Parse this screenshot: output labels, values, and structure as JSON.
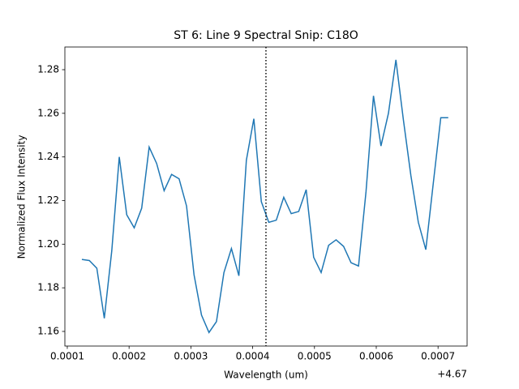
{
  "chart_data": {
    "type": "line",
    "title": "ST 6: Line 9 Spectral Snip: C18O",
    "x_label": "Wavelength (um)",
    "y_label": "Normalized Flux Intensity",
    "x_offset_label": "+4.67",
    "x": [
      4.6701236,
      4.6701357,
      4.6701478,
      4.6701599,
      4.670172,
      4.6701841,
      4.6701962,
      4.6702083,
      4.6702204,
      4.6702325,
      4.6702446,
      4.6702567,
      4.6702688,
      4.6702809,
      4.670293,
      4.6703051,
      4.6703172,
      4.6703293,
      4.6703414,
      4.6703535,
      4.6703656,
      4.6703777,
      4.6703898,
      4.6704019,
      4.670414,
      4.6704261,
      4.6704382,
      4.6704503,
      4.6704624,
      4.6704745,
      4.6704866,
      4.6704987,
      4.6705108,
      4.6705229,
      4.670535,
      4.6705471,
      4.6705592,
      4.6705713,
      4.6705834,
      4.6705955,
      4.6706076,
      4.6706197,
      4.6706318,
      4.6706439,
      4.670656,
      4.6706681,
      4.6706802,
      4.6706923,
      4.6707044,
      4.6707165
    ],
    "series": [
      {
        "color": "#1f77b4",
        "values": [
          1.193,
          1.1925,
          1.189,
          1.166,
          1.197,
          1.24,
          1.2135,
          1.2075,
          1.2165,
          1.2445,
          1.237,
          1.2245,
          1.232,
          1.23,
          1.2175,
          1.186,
          1.1675,
          1.1595,
          1.1645,
          1.187,
          1.198,
          1.1855,
          1.2385,
          1.2575,
          1.2195,
          1.21,
          1.211,
          1.2215,
          1.214,
          1.215,
          1.225,
          1.194,
          1.187,
          1.1995,
          1.202,
          1.199,
          1.1915,
          1.19,
          1.224,
          1.268,
          1.245,
          1.26,
          1.2845,
          1.257,
          1.2315,
          1.21,
          1.1975,
          1.228,
          1.258,
          1.258
        ]
      }
    ],
    "vline": 4.6704215,
    "xlim": [
      4.6700961,
      4.670747
    ],
    "ylim": [
      1.1533,
      1.2904
    ],
    "xticks": [
      {
        "value": 4.6701,
        "label": "0.0001"
      },
      {
        "value": 4.6702,
        "label": "0.0002"
      },
      {
        "value": 4.6703,
        "label": "0.0003"
      },
      {
        "value": 4.6704,
        "label": "0.0004"
      },
      {
        "value": 4.6705,
        "label": "0.0005"
      },
      {
        "value": 4.6706,
        "label": "0.0006"
      },
      {
        "value": 4.6707,
        "label": "0.0007"
      }
    ],
    "yticks": [
      1.16,
      1.18,
      {
        "value": 1.2,
        "label": "1.20"
      },
      1.22,
      1.24,
      1.26,
      1.28
    ]
  }
}
